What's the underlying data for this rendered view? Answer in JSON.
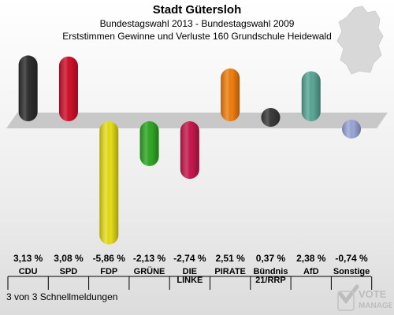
{
  "header": {
    "title": "Stadt Gütersloh",
    "subtitle": "Bundestagswahl 2013 - Bundestagswahl 2009",
    "subtitle2": "Erststimmen Gewinne und Verluste 160 Grundschule Heidewald"
  },
  "footer": {
    "note": "3 von 3 Schnellmeldungen"
  },
  "logo": {
    "line1": "VOTE",
    "line2": "MANAGER"
  },
  "chart_data": {
    "type": "bar",
    "unit": "%",
    "categories": [
      "CDU",
      "SPD",
      "FDP",
      "GRÜNE",
      "DIE LINKE",
      "PIRATE",
      "Bündnis 21/RRP",
      "AfD",
      "Sonstige"
    ],
    "category_labels": [
      [
        "CDU"
      ],
      [
        "SPD"
      ],
      [
        "FDP"
      ],
      [
        "GRÜNE"
      ],
      [
        "DIE",
        "LINKE"
      ],
      [
        "PIRATE"
      ],
      [
        "Bündnis",
        "21/RRP"
      ],
      [
        "AfD"
      ],
      [
        "Sonstige"
      ]
    ],
    "values": [
      3.13,
      3.08,
      -5.86,
      -2.13,
      -2.74,
      2.51,
      0.37,
      2.38,
      -0.74
    ],
    "value_labels": [
      "3,13 %",
      "3,08 %",
      "-5,86 %",
      "-2,13 %",
      "-2,74 %",
      "2,51 %",
      "0,37 %",
      "2,38 %",
      "-0,74 %"
    ],
    "colors": [
      "#2e2e2e",
      "#d0102a",
      "#e8de1a",
      "#2fa824",
      "#c8184e",
      "#f08010",
      "#3a3a3a",
      "#5aa898",
      "#9aa8d8"
    ],
    "ylim": [
      -6,
      3.5
    ]
  }
}
